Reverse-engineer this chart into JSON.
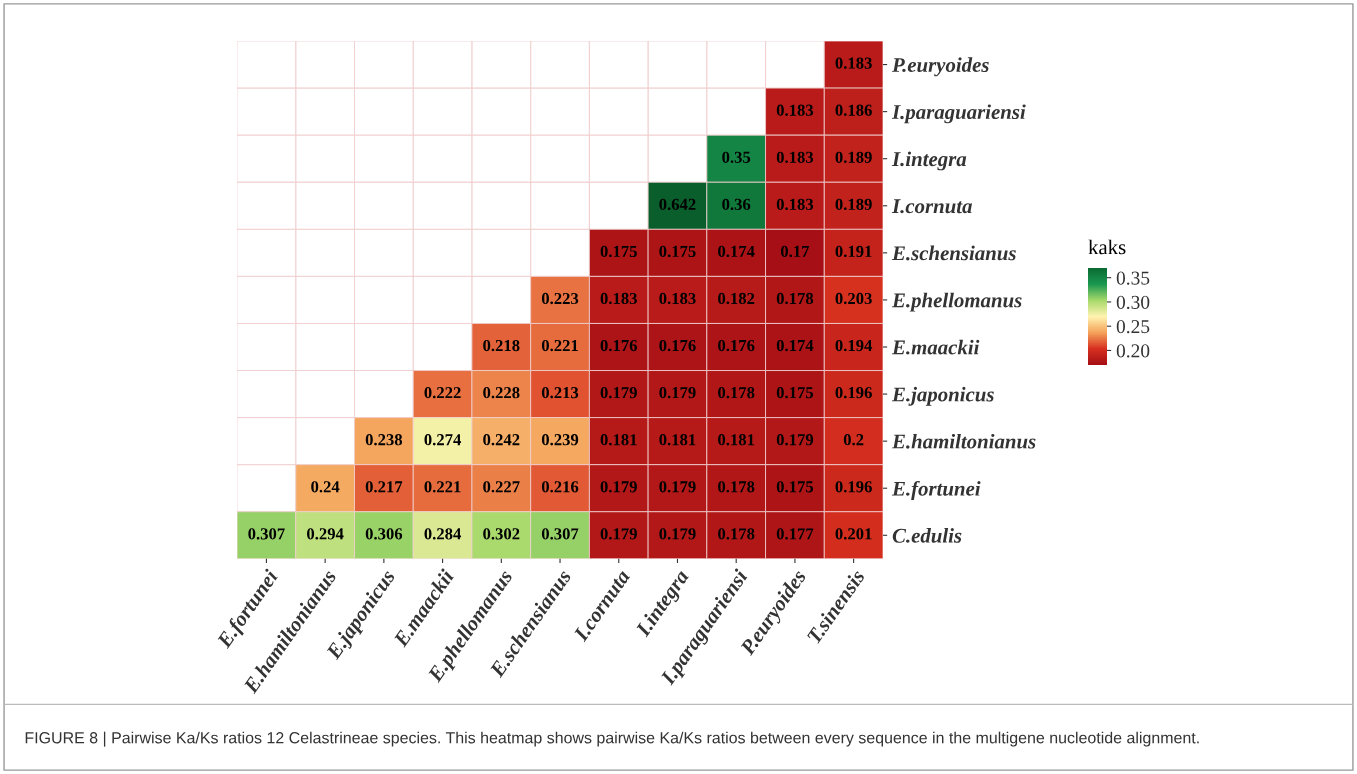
{
  "chart_data": {
    "type": "heatmap",
    "categories": [
      "E.fortunei",
      "E.hamiltonianus",
      "E.japonicus",
      "E.maackii",
      "E.phellomanus",
      "E.schensianus",
      "I.cornuta",
      "I.integra",
      "I.paraguariensi",
      "P.euryoides",
      "T.sinensis"
    ],
    "y_categories": [
      "P.euryoides",
      "I.paraguariensi",
      "I.integra",
      "I.cornuta",
      "E.schensianus",
      "E.phellomanus",
      "E.maackii",
      "E.japonicus",
      "E.hamiltonianus",
      "E.fortunei",
      "C.edulis"
    ],
    "cells": [
      [
        null,
        null,
        null,
        null,
        null,
        null,
        null,
        null,
        null,
        null,
        0.183
      ],
      [
        null,
        null,
        null,
        null,
        null,
        null,
        null,
        null,
        null,
        0.183,
        0.186
      ],
      [
        null,
        null,
        null,
        null,
        null,
        null,
        null,
        null,
        0.35,
        0.183,
        0.189
      ],
      [
        null,
        null,
        null,
        null,
        null,
        null,
        null,
        0.642,
        0.36,
        0.183,
        0.189
      ],
      [
        null,
        null,
        null,
        null,
        null,
        null,
        0.175,
        0.175,
        0.174,
        0.17,
        0.191
      ],
      [
        null,
        null,
        null,
        null,
        null,
        0.223,
        0.183,
        0.183,
        0.182,
        0.178,
        0.203
      ],
      [
        null,
        null,
        null,
        null,
        0.218,
        0.221,
        0.176,
        0.176,
        0.176,
        0.174,
        0.194
      ],
      [
        null,
        null,
        null,
        0.222,
        0.228,
        0.213,
        0.179,
        0.179,
        0.178,
        0.175,
        0.196
      ],
      [
        null,
        null,
        0.238,
        0.274,
        0.242,
        0.239,
        0.181,
        0.181,
        0.181,
        0.179,
        0.2
      ],
      [
        null,
        0.24,
        0.217,
        0.221,
        0.227,
        0.216,
        0.179,
        0.179,
        0.178,
        0.175,
        0.196
      ],
      [
        0.307,
        0.294,
        0.306,
        0.284,
        0.302,
        0.307,
        0.179,
        0.179,
        0.178,
        0.177,
        0.201
      ]
    ],
    "data_labels": true,
    "clabel": "kaks",
    "clim": [
      0.17,
      0.37
    ],
    "cticks": [
      {
        "value": 0.2,
        "label": "0.20"
      },
      {
        "value": 0.25,
        "label": "0.25"
      },
      {
        "value": 0.3,
        "label": "0.30"
      },
      {
        "value": 0.35,
        "label": "0.35"
      }
    ],
    "annotations": [
      "FIGURE 8 | Pairwise Ka/Ks ratios 12 Celastrineae species. This heatmap shows pairwise Ka/Ks ratios between every sequence in the multigene nucleotide alignment."
    ]
  }
}
